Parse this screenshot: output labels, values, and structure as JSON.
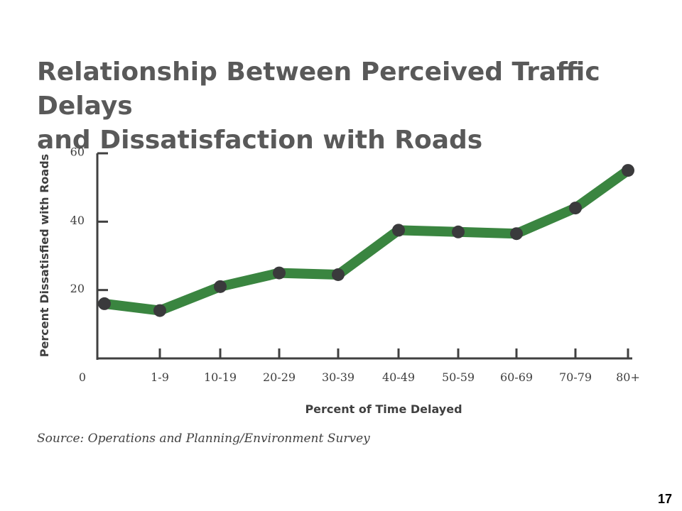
{
  "slide": {
    "title_lines": [
      "Relationship Between Perceived Traffic Delays",
      "and Dissatisfaction with Roads"
    ],
    "source": "Source: Operations and Planning/Environment Survey",
    "page_number": "17"
  },
  "colors": {
    "line": "#3a8540",
    "marker": "#3a3a3c",
    "axis": "#404040",
    "text": "#404040",
    "title": "#595959"
  },
  "chart_data": {
    "type": "line",
    "title": "Relationship Between Perceived Traffic Delays and Dissatisfaction with Roads",
    "xlabel": "Percent of Time Delayed",
    "ylabel": "Percent Dissatisfied with Roads",
    "origin_label": "0",
    "categories": [
      "0",
      "1-9",
      "10-19",
      "20-29",
      "30-39",
      "40-49",
      "50-59",
      "60-69",
      "70-79",
      "80+"
    ],
    "y_ticks": [
      20,
      40,
      60
    ],
    "ylim": [
      0,
      60
    ],
    "grid": false,
    "legend": "none",
    "series": [
      {
        "values": [
          16,
          14,
          21,
          25,
          24.5,
          37.5,
          37,
          36.5,
          44,
          55
        ]
      }
    ]
  }
}
